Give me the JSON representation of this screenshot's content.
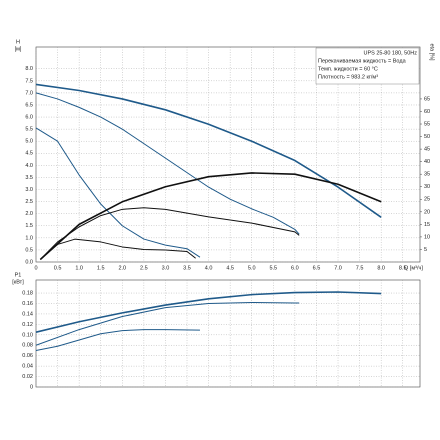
{
  "chart_data": [
    {
      "type": "line",
      "ylabel": [
        "H",
        "[м]"
      ],
      "y2label": "eta [%]",
      "xlabel": "Q [м³/ч]",
      "info": [
        "UPS 25-80 180, 50Hz",
        "Перекачиваемая жидкость = Вода",
        "Темп. жидкости = 60 °C",
        "Плотность = 983.2 кг/м³"
      ],
      "xlim": [
        0,
        8.9
      ],
      "ylim": [
        0,
        8.9
      ],
      "y2lim": [
        0,
        85.7
      ],
      "grid": true,
      "xticks": [
        0,
        0.5,
        {
          "value": 1,
          "label": "1.0"
        },
        1.5,
        {
          "value": 2,
          "label": "2.0"
        },
        2.5,
        {
          "value": 3,
          "label": "3.0"
        },
        3.5,
        {
          "value": 4,
          "label": "4.0"
        },
        4.5,
        {
          "value": 5,
          "label": "5.0"
        },
        5.5,
        {
          "value": 6,
          "label": "6.0"
        },
        6.5,
        {
          "value": 7,
          "label": "7.0"
        },
        7.5,
        {
          "value": 8,
          "label": "8.0"
        },
        8.5
      ],
      "yticks": [
        {
          "value": 0,
          "label": "0.0"
        },
        0.5,
        {
          "value": 1,
          "label": "1.0"
        },
        1.5,
        {
          "value": 2,
          "label": "2.0"
        },
        2.5,
        {
          "value": 3,
          "label": "3.0"
        },
        3.5,
        {
          "value": 4,
          "label": "4.0"
        },
        4.5,
        {
          "value": 5,
          "label": "5.0"
        },
        5.5,
        {
          "value": 6,
          "label": "6.0"
        },
        6.5,
        {
          "value": 7,
          "label": "7.0"
        },
        7.5,
        {
          "value": 8,
          "label": "8.0"
        }
      ],
      "y2ticks": [
        5,
        10,
        15,
        20,
        25,
        30,
        35,
        40,
        45,
        50,
        55,
        60,
        65
      ],
      "series": [
        {
          "color": "#1f5a8a",
          "width": 1.6,
          "x": [
            0,
            1,
            2,
            3,
            4,
            5,
            6,
            7,
            8
          ],
          "values": [
            7.35,
            7.1,
            6.75,
            6.3,
            5.7,
            5.0,
            4.2,
            3.1,
            1.85
          ]
        },
        {
          "color": "#1f5a8a",
          "width": 1,
          "x": [
            0,
            0.5,
            1,
            1.5,
            2,
            2.5,
            3,
            3.5,
            4,
            4.5,
            5,
            5.5,
            6,
            6.1
          ],
          "values": [
            7.0,
            6.75,
            6.4,
            6.0,
            5.5,
            4.9,
            4.3,
            3.7,
            3.1,
            2.6,
            2.2,
            1.85,
            1.35,
            1.15
          ]
        },
        {
          "color": "#1f5a8a",
          "width": 1,
          "x": [
            0,
            0.5,
            1,
            1.5,
            2,
            2.5,
            3,
            3.5,
            3.8
          ],
          "values": [
            5.55,
            5.0,
            3.6,
            2.4,
            1.5,
            0.95,
            0.7,
            0.55,
            0.2
          ]
        },
        {
          "color": "#111111",
          "width": 1.6,
          "axis": "y2",
          "x": [
            0.1,
            1,
            2,
            3,
            4,
            5,
            6,
            7,
            8
          ],
          "values": [
            1,
            15,
            24,
            30,
            34,
            35.5,
            35,
            31,
            24
          ]
        },
        {
          "color": "#111111",
          "width": 1,
          "axis": "y2",
          "x": [
            0.1,
            0.5,
            1,
            1.5,
            2,
            2.5,
            3,
            4,
            5,
            6,
            6.1
          ],
          "values": [
            1,
            8,
            14,
            18.5,
            21,
            21.6,
            21,
            18,
            15.5,
            12,
            10.6
          ]
        },
        {
          "color": "#111111",
          "width": 1,
          "axis": "y2",
          "x": [
            0.1,
            0.5,
            0.9,
            1.5,
            2,
            2.5,
            3,
            3.5,
            3.7
          ],
          "values": [
            1,
            7,
            9.1,
            8,
            6,
            5,
            4.8,
            4.2,
            1.5
          ]
        }
      ]
    },
    {
      "type": "line",
      "ylabel": [
        "P1",
        "[кВт]"
      ],
      "xlim": [
        0,
        8.9
      ],
      "ylim": [
        0,
        0.205
      ],
      "grid": true,
      "xticks": [
        0,
        0.5,
        1,
        1.5,
        2,
        2.5,
        3,
        3.5,
        4,
        4.5,
        5,
        5.5,
        6,
        6.5,
        7,
        7.5,
        8,
        8.5
      ],
      "yticks": [
        0,
        0.02,
        0.04,
        0.06,
        0.08,
        {
          "value": 0.1,
          "label": "0.10"
        },
        0.12,
        0.14,
        0.16,
        0.18
      ],
      "series": [
        {
          "color": "#1f5a8a",
          "width": 1.6,
          "x": [
            0,
            1,
            2,
            3,
            4,
            5,
            6,
            7,
            8
          ],
          "values": [
            0.105,
            0.125,
            0.142,
            0.157,
            0.169,
            0.177,
            0.181,
            0.182,
            0.179
          ]
        },
        {
          "color": "#1f5a8a",
          "width": 1,
          "x": [
            0,
            1,
            2,
            3,
            4,
            5,
            6,
            6.1
          ],
          "values": [
            0.08,
            0.11,
            0.135,
            0.152,
            0.16,
            0.162,
            0.161,
            0.161
          ]
        },
        {
          "color": "#1f5a8a",
          "width": 1,
          "x": [
            0,
            0.5,
            1,
            1.5,
            2,
            2.5,
            3,
            3.8
          ],
          "values": [
            0.07,
            0.078,
            0.09,
            0.102,
            0.108,
            0.11,
            0.11,
            0.109
          ]
        }
      ]
    }
  ]
}
